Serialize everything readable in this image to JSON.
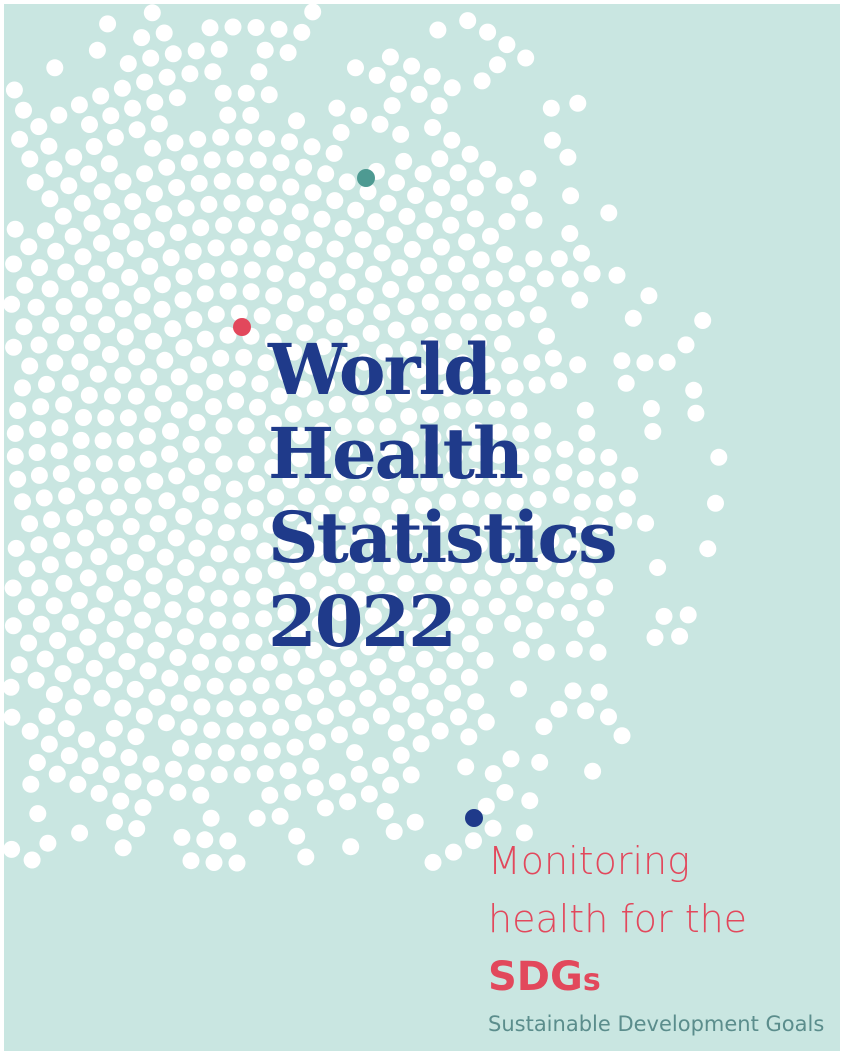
{
  "cover": {
    "title": [
      "World",
      "Health",
      "Statistics",
      "2022"
    ],
    "subtitle": [
      "Monitoring",
      "health for the"
    ],
    "acronym": {
      "main": "SDG",
      "suffix": "s"
    },
    "acronym_expansion": "Sustainable Development Goals"
  }
}
